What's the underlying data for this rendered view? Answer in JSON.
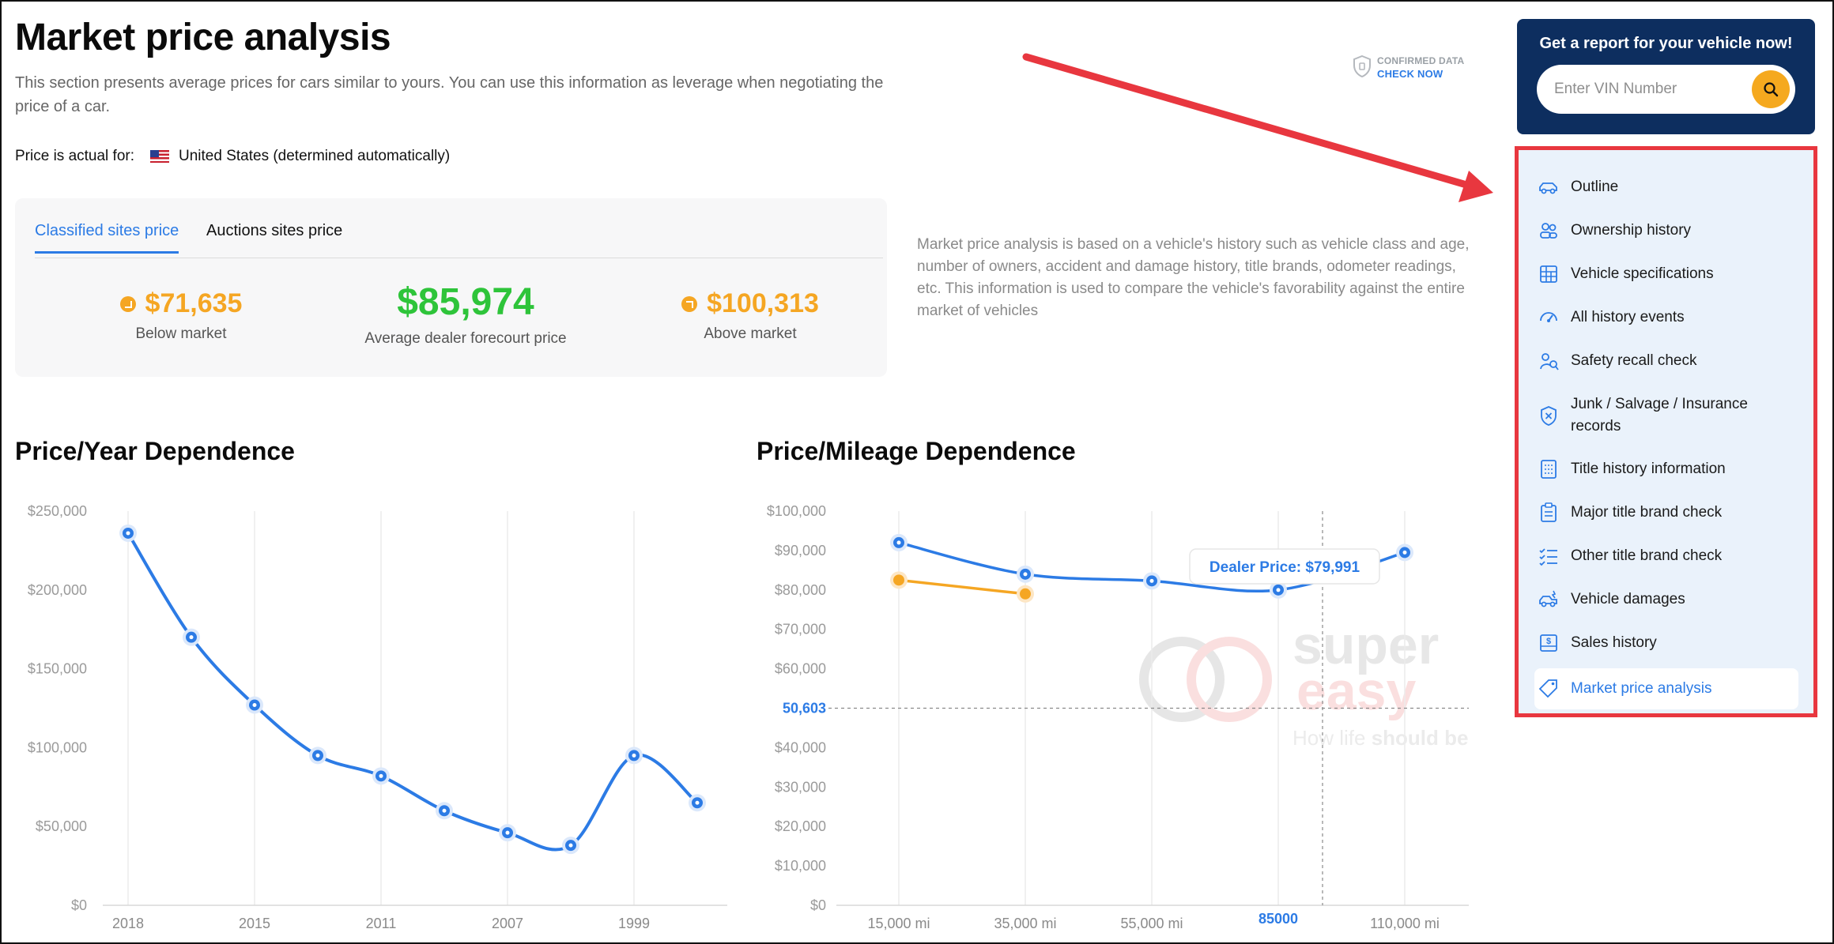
{
  "page": {
    "title": "Market price analysis",
    "intro": "This section presents average prices for cars similar to yours. You can use this information as leverage when negotiating the price of a car.",
    "actual_label": "Price is actual for:",
    "country": "United States (determined automatically)"
  },
  "confirmed": {
    "line1": "CONFIRMED DATA",
    "line2": "CHECK NOW"
  },
  "price_card": {
    "tabs": [
      {
        "label": "Classified sites price",
        "active": true
      },
      {
        "label": "Auctions sites price",
        "active": false
      }
    ],
    "below": {
      "amount": "$71,635",
      "label": "Below market"
    },
    "average": {
      "amount": "$85,974",
      "label": "Average dealer forecourt price"
    },
    "above": {
      "amount": "$100,313",
      "label": "Above market"
    }
  },
  "explanation": "Market price analysis is based on a vehicle's history such as vehicle class and age, number of owners, accident and damage history, title brands, odometer readings, etc. This information is used to compare the vehicle's favorability against the entire market of vehicles",
  "cta": {
    "title": "Get a report for your vehicle now!",
    "vin_placeholder": "Enter VIN Number"
  },
  "nav": {
    "items": [
      {
        "label": "Outline",
        "icon": "car-icon"
      },
      {
        "label": "Ownership history",
        "icon": "owners-icon"
      },
      {
        "label": "Vehicle specifications",
        "icon": "grid-icon"
      },
      {
        "label": "All history events",
        "icon": "gauge-icon"
      },
      {
        "label": "Safety recall check",
        "icon": "recall-icon"
      },
      {
        "label": "Junk / Salvage / Insurance records",
        "icon": "shield-x-icon"
      },
      {
        "label": "Title history information",
        "icon": "document-list-icon"
      },
      {
        "label": "Major title brand check",
        "icon": "clipboard-icon"
      },
      {
        "label": "Other title brand check",
        "icon": "checklist-icon"
      },
      {
        "label": "Vehicle damages",
        "icon": "damaged-car-icon"
      },
      {
        "label": "Sales history",
        "icon": "sales-icon"
      },
      {
        "label": "Market price analysis",
        "icon": "tag-icon",
        "active": true
      }
    ]
  },
  "watermark": {
    "brand_top": "super",
    "brand_bottom": "easy",
    "tagline_a": "How life ",
    "tagline_b": "should be"
  },
  "colors": {
    "accent": "#2c7be5",
    "orange": "#f5a623",
    "green": "#2ec43a",
    "navy": "#0d2e5f",
    "red": "#e8373f"
  },
  "chart_data": [
    {
      "type": "line",
      "title": "Price/Year Dependence",
      "x_ticks": [
        "2018",
        "2015",
        "2011",
        "2007",
        "1999"
      ],
      "y_ticks": [
        "$0",
        "$50,000",
        "$100,000",
        "$150,000",
        "$200,000",
        "$250,000"
      ],
      "ylim": [
        0,
        250000
      ],
      "grid": true,
      "series": [
        {
          "values": [
            236000,
            170000,
            127000,
            95000,
            82000,
            60000,
            46000,
            38000,
            95000,
            65000
          ]
        }
      ]
    },
    {
      "type": "line",
      "title": "Price/Mileage Dependence",
      "x_ticks": [
        "15,000 mi",
        "35,000 mi",
        "55,000 mi",
        "85000",
        "110,000 mi"
      ],
      "y_ticks": [
        "$0",
        "$10,000",
        "$20,000",
        "$30,000",
        "$40,000",
        "50,603",
        "$60,000",
        "$70,000",
        "$80,000",
        "$90,000",
        "$100,000"
      ],
      "ylim": [
        0,
        100000
      ],
      "grid": true,
      "crosshair": {
        "x": "85000",
        "y": "50,603"
      },
      "tooltip": "Dealer Price: $79,991",
      "series": [
        {
          "color": "#2c7be5",
          "values": [
            92000,
            84000,
            82300,
            79991,
            89500
          ]
        },
        {
          "color": "#f5a623",
          "values": [
            82500,
            79000
          ]
        }
      ]
    }
  ]
}
